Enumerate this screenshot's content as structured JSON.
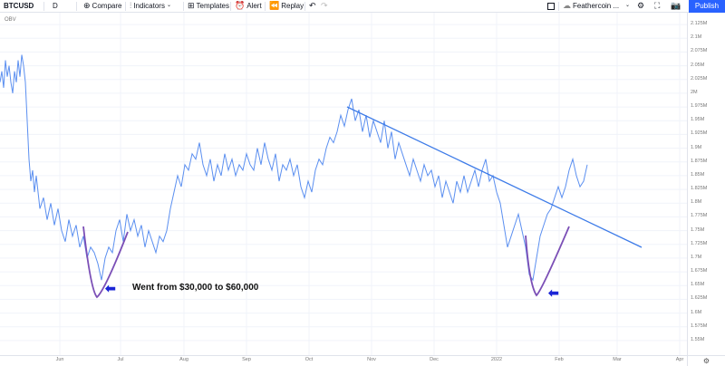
{
  "toolbar": {
    "symbol": "BTCUSD",
    "interval": "D",
    "compare_label": "Compare",
    "indicators_label": "Indicators",
    "templates_label": "Templates",
    "alert_label": "Alert",
    "replay_label": "Replay",
    "layout_name": "Feathercoin ...",
    "publish_label": "Publish"
  },
  "indicator_name": "OBV",
  "annotation": {
    "text": "Went from $30,000 to $60,000",
    "arrow_color": "#1a24d6"
  },
  "colors": {
    "line": "#5b8ff0",
    "trendline": "#3d7be8",
    "curve": "#7b4fb6",
    "publish": "#2962ff"
  },
  "price_scale": [
    "2.125M",
    "2.1M",
    "2.075M",
    "2.05M",
    "2.025M",
    "2M",
    "1.975M",
    "1.95M",
    "1.925M",
    "1.9M",
    "1.875M",
    "1.85M",
    "1.825M",
    "1.8M",
    "1.775M",
    "1.75M",
    "1.725M",
    "1.7M",
    "1.675M",
    "1.65M",
    "1.625M",
    "1.6M",
    "1.575M",
    "1.55M"
  ],
  "time_scale": [
    "Jun",
    "Jul",
    "Aug",
    "Sep",
    "Oct",
    "Nov",
    "Dec",
    "2022",
    "Feb",
    "Mar",
    "Apr"
  ],
  "chart_data": {
    "type": "line",
    "title": "",
    "ylabel": "",
    "ylim": [
      1.54,
      2.14
    ],
    "series": [
      {
        "name": "OBV",
        "x": [
          0,
          2,
          4,
          6,
          8,
          10,
          12,
          14,
          16,
          18,
          20,
          22,
          24,
          26,
          28,
          30,
          32,
          34,
          36,
          38,
          40,
          44,
          48,
          52,
          56,
          60,
          64,
          68,
          72,
          76,
          80,
          84,
          88,
          92,
          96,
          100,
          104,
          108,
          112,
          116,
          120,
          124,
          128,
          132,
          136,
          140,
          144,
          148,
          152,
          156,
          160,
          164,
          168,
          172,
          176,
          180,
          184,
          188,
          192,
          196,
          200,
          204,
          208,
          212,
          216,
          220,
          224,
          228,
          232,
          236,
          240,
          244,
          248,
          252,
          256,
          260,
          264,
          268,
          272,
          276,
          280,
          284,
          288,
          292,
          296,
          300,
          304,
          308,
          312,
          316,
          320,
          324,
          328,
          332,
          336,
          340,
          344,
          348,
          352,
          356,
          360,
          364,
          368,
          372,
          376,
          380,
          384,
          388,
          392,
          396,
          400,
          404,
          408,
          412,
          416,
          420,
          424,
          428,
          432,
          436,
          440,
          444,
          448,
          452,
          456,
          460,
          464,
          468,
          472,
          476,
          480,
          484,
          488,
          492,
          496,
          500,
          504,
          508,
          512,
          516,
          520,
          524,
          528,
          532,
          536,
          540,
          544,
          548,
          552,
          556,
          560,
          564,
          568,
          572,
          576,
          580,
          584,
          588,
          592,
          596,
          600,
          604,
          608,
          612,
          616,
          620,
          624,
          628,
          632,
          636,
          640,
          644,
          648
        ],
        "values": [
          2.02,
          2.04,
          2.01,
          2.06,
          2.03,
          2.05,
          2.02,
          2.0,
          2.04,
          2.02,
          2.06,
          2.03,
          2.07,
          2.05,
          2.02,
          1.95,
          1.88,
          1.84,
          1.86,
          1.82,
          1.85,
          1.79,
          1.81,
          1.77,
          1.8,
          1.76,
          1.79,
          1.75,
          1.73,
          1.77,
          1.74,
          1.76,
          1.72,
          1.74,
          1.7,
          1.72,
          1.71,
          1.69,
          1.66,
          1.7,
          1.72,
          1.71,
          1.75,
          1.77,
          1.73,
          1.78,
          1.75,
          1.77,
          1.74,
          1.76,
          1.72,
          1.75,
          1.73,
          1.71,
          1.74,
          1.73,
          1.75,
          1.79,
          1.82,
          1.85,
          1.83,
          1.87,
          1.86,
          1.89,
          1.88,
          1.91,
          1.87,
          1.85,
          1.88,
          1.84,
          1.87,
          1.85,
          1.89,
          1.86,
          1.88,
          1.85,
          1.87,
          1.86,
          1.89,
          1.87,
          1.86,
          1.9,
          1.87,
          1.91,
          1.88,
          1.86,
          1.89,
          1.84,
          1.87,
          1.86,
          1.88,
          1.85,
          1.87,
          1.83,
          1.81,
          1.84,
          1.82,
          1.86,
          1.88,
          1.87,
          1.9,
          1.92,
          1.91,
          1.93,
          1.96,
          1.94,
          1.97,
          1.99,
          1.95,
          1.97,
          1.93,
          1.96,
          1.92,
          1.95,
          1.93,
          1.91,
          1.95,
          1.9,
          1.93,
          1.88,
          1.91,
          1.89,
          1.87,
          1.85,
          1.88,
          1.86,
          1.84,
          1.87,
          1.85,
          1.86,
          1.83,
          1.85,
          1.81,
          1.84,
          1.82,
          1.8,
          1.84,
          1.82,
          1.85,
          1.82,
          1.84,
          1.86,
          1.83,
          1.86,
          1.88,
          1.84,
          1.85,
          1.82,
          1.8,
          1.76,
          1.72,
          1.74,
          1.76,
          1.78,
          1.75,
          1.72,
          1.67,
          1.66,
          1.7,
          1.74,
          1.76,
          1.78,
          1.79,
          1.81,
          1.83,
          1.81,
          1.83,
          1.86,
          1.88,
          1.85,
          1.83,
          1.84,
          1.87
        ]
      }
    ]
  }
}
